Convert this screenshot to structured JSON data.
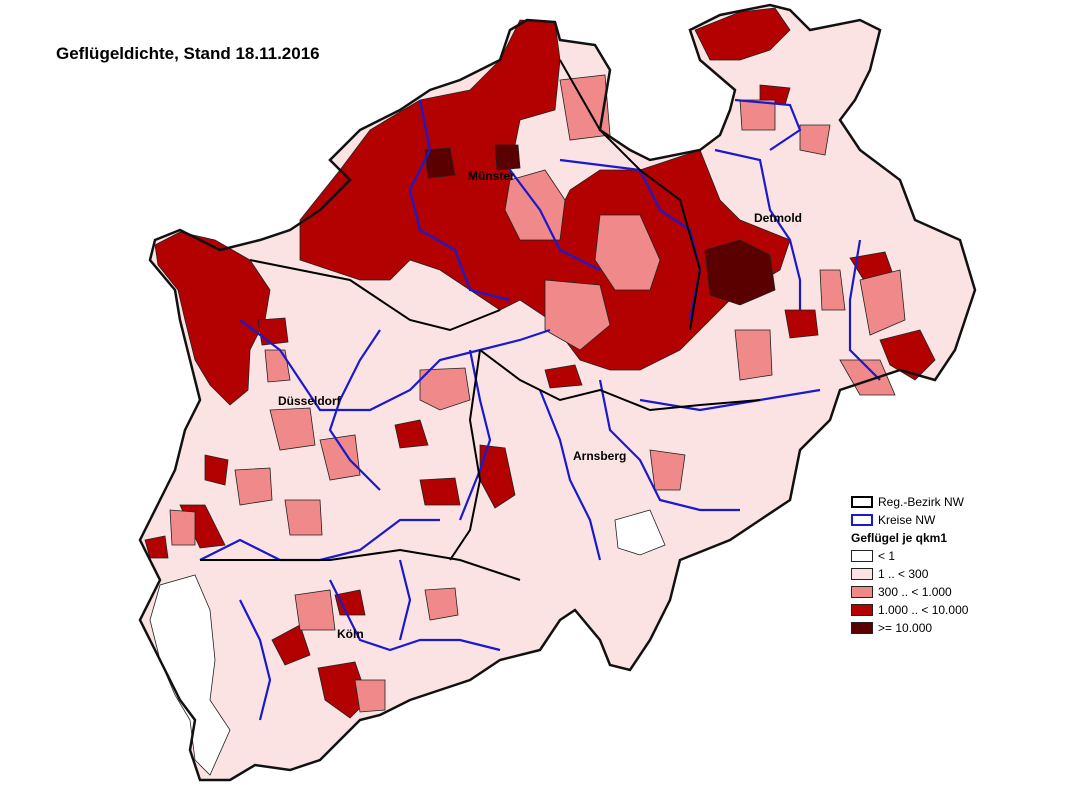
{
  "title": "Geflügeldichte, Stand 18.11.2016",
  "cities": [
    {
      "name": "Münster"
    },
    {
      "name": "Detmold"
    },
    {
      "name": "Düsseldorf"
    },
    {
      "name": "Arnsberg"
    },
    {
      "name": "Köln"
    }
  ],
  "legend": {
    "boundary_items": [
      {
        "label": "Reg.-Bezirk NW",
        "color": "#000000"
      },
      {
        "label": "Kreise NW",
        "color": "#1a1acc"
      }
    ],
    "heading": "Geflügel je qkm1",
    "classes": [
      {
        "label": "< 1",
        "color": "#ffffff"
      },
      {
        "label": "1 .. < 300",
        "color": "#fbe3e3"
      },
      {
        "label": "300 .. < 1.000",
        "color": "#f08a8a"
      },
      {
        "label": "1.000 .. < 10.000",
        "color": "#b30000"
      },
      {
        "label": ">= 10.000",
        "color": "#5a0000"
      }
    ]
  }
}
